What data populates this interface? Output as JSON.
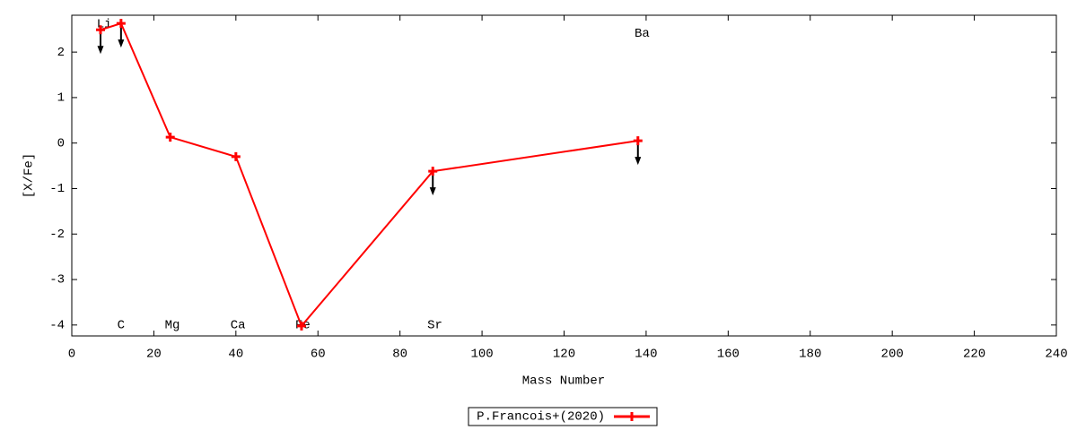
{
  "chart_data": {
    "type": "line",
    "xlabel": "Mass Number",
    "ylabel": "[X/Fe]",
    "x": [
      7,
      12,
      24,
      40,
      56,
      88,
      138
    ],
    "series": [
      {
        "name": "P.Francois+(2020)",
        "color": "#ff0000",
        "values": [
          2.49,
          2.63,
          0.13,
          -0.3,
          -4.02,
          -0.62,
          0.05
        ],
        "upper_limit": [
          true,
          true,
          false,
          false,
          false,
          true,
          true
        ]
      }
    ],
    "annotations": [
      {
        "text": "Li",
        "x": 7.9,
        "y": 2.62
      },
      {
        "text": "C",
        "x": 12,
        "y": -4
      },
      {
        "text": "Mg",
        "x": 24.5,
        "y": -4
      },
      {
        "text": "Ca",
        "x": 40.5,
        "y": -4
      },
      {
        "text": "Fe",
        "x": 56.3,
        "y": -4
      },
      {
        "text": "Sr",
        "x": 88.5,
        "y": -4
      },
      {
        "text": "Ba",
        "x": 139,
        "y": 2.41
      }
    ],
    "xlim": [
      0,
      240
    ],
    "xticks": [
      0,
      20,
      40,
      60,
      80,
      100,
      120,
      140,
      160,
      180,
      200,
      220,
      240
    ],
    "ylim": [
      -4.24,
      2.81
    ],
    "yticks": [
      -4,
      -3,
      -2,
      -1,
      0,
      1,
      2
    ],
    "legend": "bottom"
  }
}
